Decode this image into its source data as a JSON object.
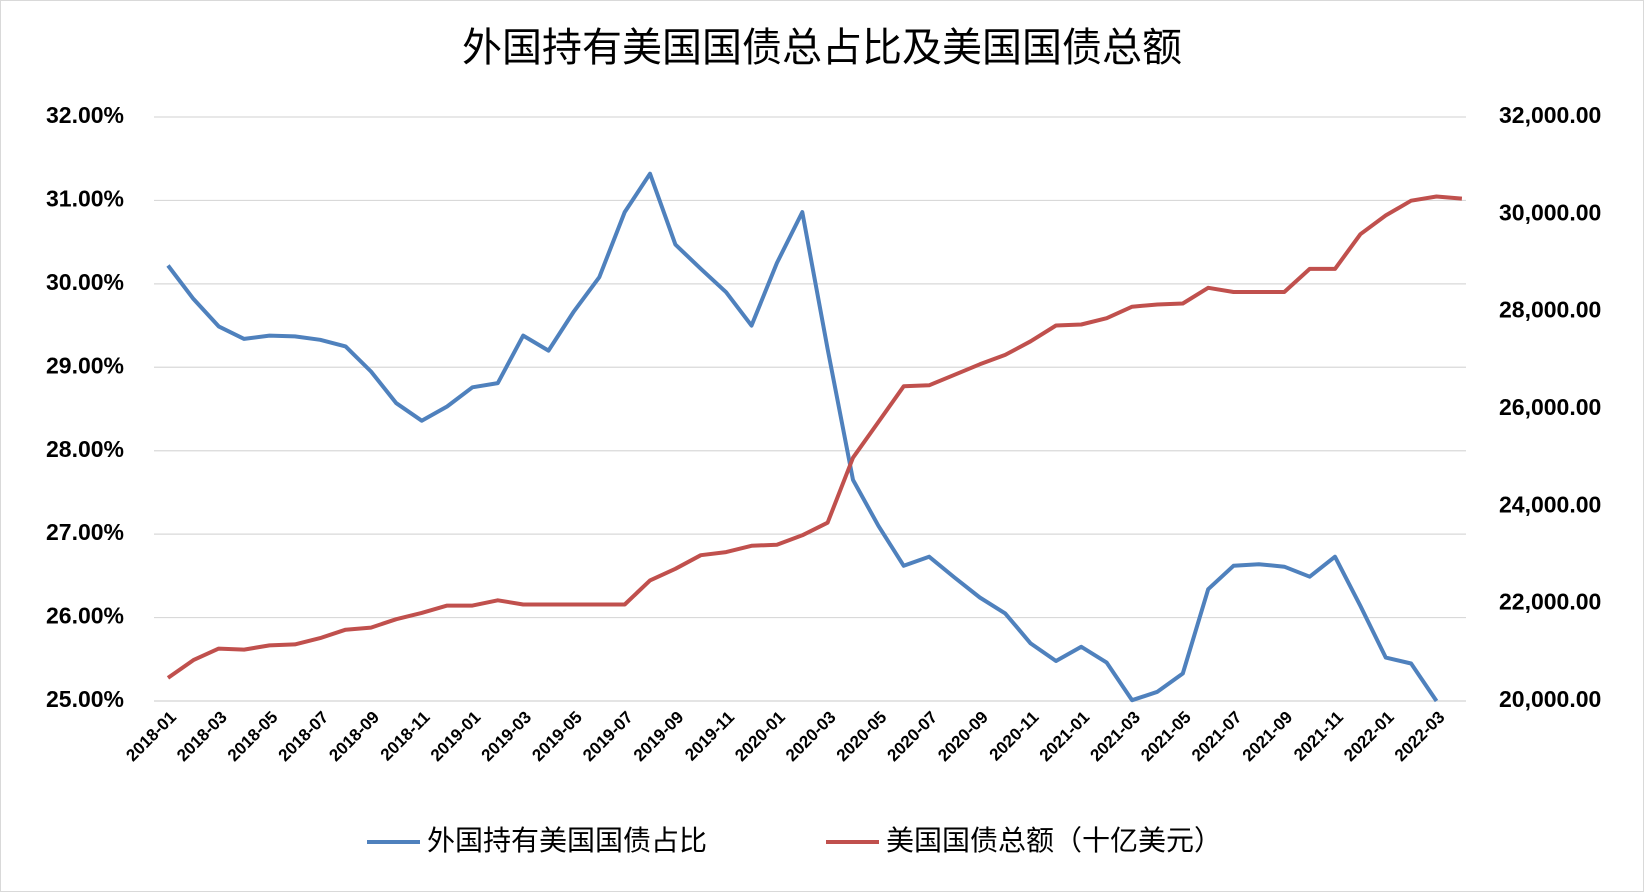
{
  "chart_data": {
    "type": "line",
    "title": "外国持有美国国债总占比及美国国债总额",
    "categories": [
      "2018-01",
      null,
      "2018-03",
      null,
      "2018-05",
      null,
      "2018-07",
      null,
      "2018-09",
      null,
      "2018-11",
      null,
      "2019-01",
      null,
      "2019-03",
      null,
      "2019-05",
      null,
      "2019-07",
      null,
      "2019-09",
      null,
      "2019-11",
      null,
      "2020-01",
      null,
      "2020-03",
      null,
      "2020-05",
      null,
      "2020-07",
      null,
      "2020-09",
      null,
      "2020-11",
      null,
      "2021-01",
      null,
      "2021-03",
      null,
      "2021-05",
      null,
      "2021-07",
      null,
      "2021-09",
      null,
      "2021-11",
      null,
      "2022-01",
      null,
      "2022-03",
      null
    ],
    "series": [
      {
        "name": "外国持有美国国债占比",
        "color": "#4f81bd",
        "values": [
          30.22,
          29.82,
          29.49,
          29.34,
          29.38,
          29.37,
          29.33,
          29.25,
          28.95,
          28.57,
          28.36,
          28.53,
          28.76,
          28.81,
          29.38,
          29.2,
          29.67,
          30.08,
          30.86,
          31.32,
          30.47,
          30.18,
          29.9,
          29.5,
          30.25,
          30.86,
          29.22,
          27.65,
          27.1,
          26.62,
          26.73,
          26.48,
          26.24,
          26.05,
          25.69,
          25.48,
          25.65,
          25.46,
          25.01,
          25.11,
          25.33,
          26.34,
          26.62,
          26.64,
          26.61,
          26.49,
          26.73,
          26.14,
          25.52,
          25.45,
          25.0,
          null
        ]
      },
      {
        "name": "美国国债总额（十亿美元）",
        "color": "#c0504d",
        "axis": "y2",
        "values": [
          20474,
          20840,
          21077,
          21056,
          21142,
          21164,
          21293,
          21466,
          21509,
          21681,
          21810,
          21961,
          21961,
          22069,
          21983,
          21983,
          21983,
          21983,
          21983,
          22478,
          22716,
          22996,
          23060,
          23190,
          23211,
          23405,
          23664,
          25000,
          25733,
          26466,
          26487,
          26703,
          26918,
          27112,
          27392,
          27716,
          27737,
          27866,
          28103,
          28147,
          28168,
          28491,
          28405,
          28405,
          28405,
          28879,
          28879,
          29591,
          29978,
          30280,
          30366,
          30323
        ]
      }
    ],
    "ylim": [
      25,
      32
    ],
    "yticks": [
      {
        "value": 25,
        "label": "25.00%"
      },
      {
        "value": 26,
        "label": "26.00%"
      },
      {
        "value": 27,
        "label": "27.00%"
      },
      {
        "value": 28,
        "label": "28.00%"
      },
      {
        "value": 29,
        "label": "29.00%"
      },
      {
        "value": 30,
        "label": "30.00%"
      },
      {
        "value": 31,
        "label": "31.00%"
      },
      {
        "value": 32,
        "label": "32.00%"
      }
    ],
    "y2lim": [
      20000,
      32000
    ],
    "y2ticks": [
      {
        "value": 20000,
        "label": "20,000.00"
      },
      {
        "value": 22000,
        "label": "22,000.00"
      },
      {
        "value": 24000,
        "label": "24,000.00"
      },
      {
        "value": 26000,
        "label": "26,000.00"
      },
      {
        "value": 28000,
        "label": "28,000.00"
      },
      {
        "value": 30000,
        "label": "30,000.00"
      },
      {
        "value": 32000,
        "label": "32,000.00"
      }
    ],
    "grid": true,
    "legend": "bottom"
  }
}
